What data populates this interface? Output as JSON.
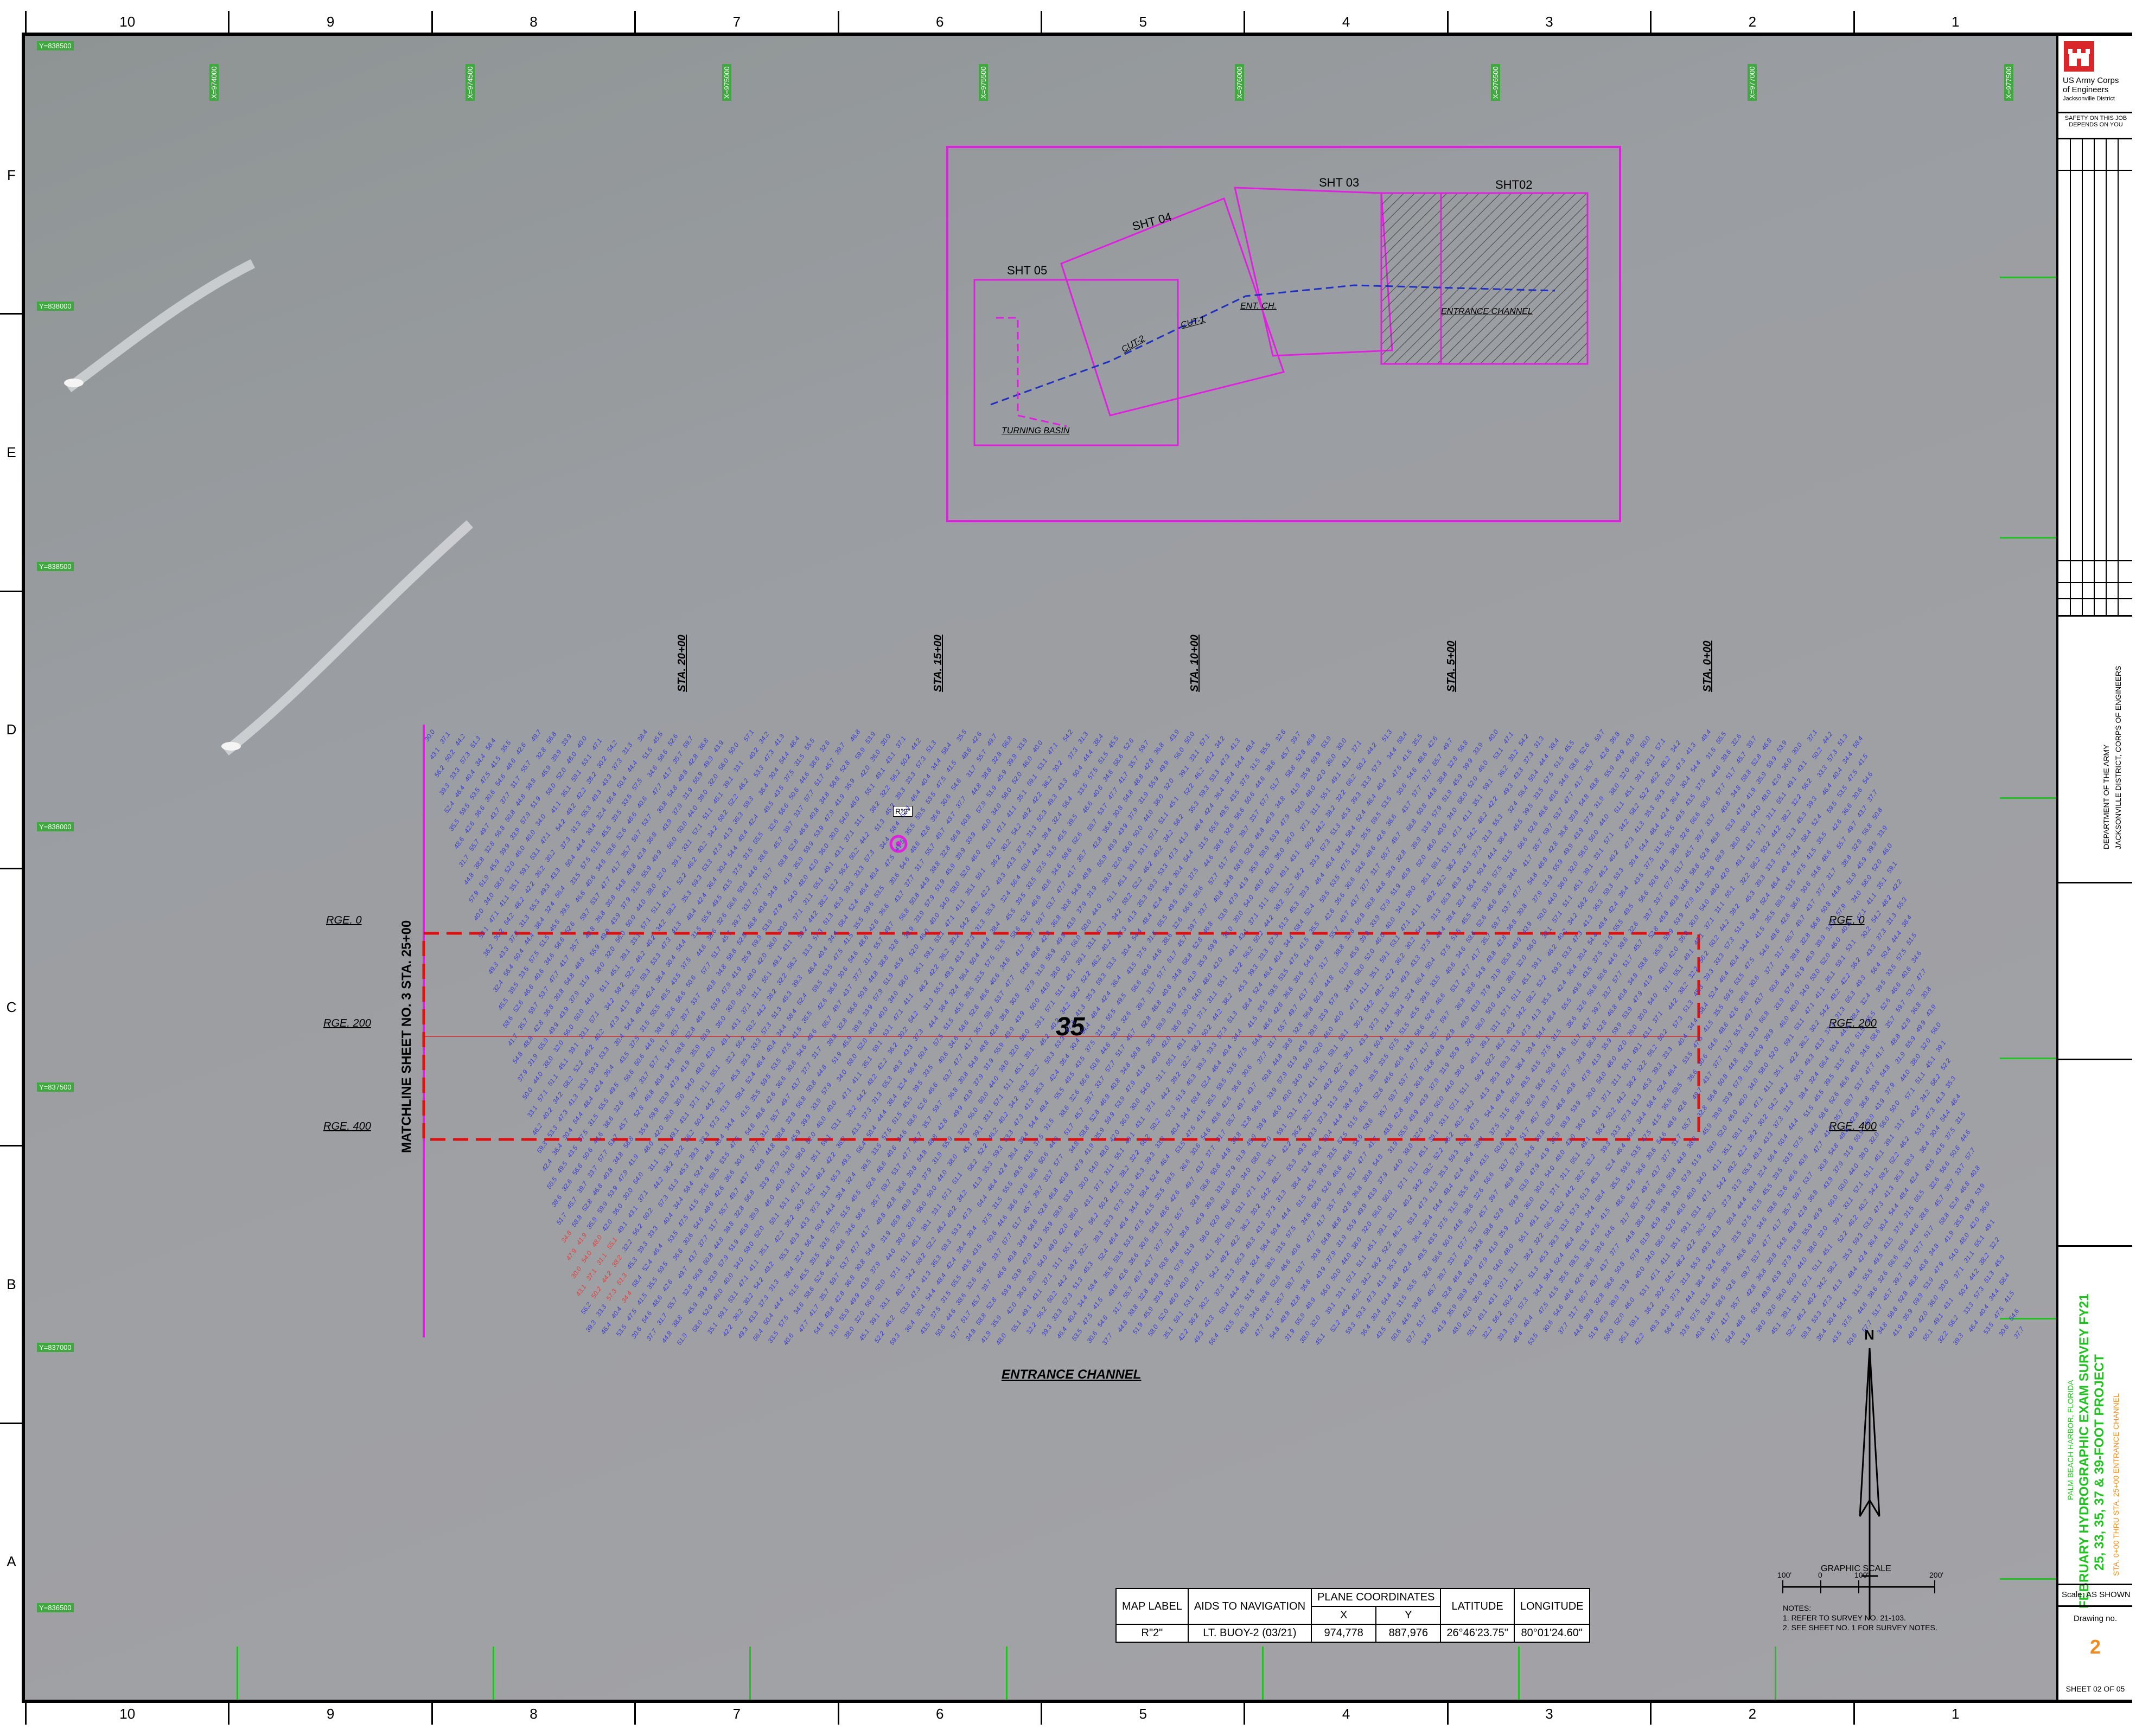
{
  "grid": {
    "columns": [
      "10",
      "9",
      "8",
      "7",
      "6",
      "5",
      "4",
      "3",
      "2",
      "1"
    ],
    "rows": [
      "F",
      "E",
      "D",
      "C",
      "B",
      "A"
    ]
  },
  "map_coords": {
    "left_tags": [
      "Y=838500",
      "Y=838000",
      "Y=838500",
      "Y=838000",
      "Y=837500",
      "Y=837000",
      "Y=836500"
    ],
    "top_tags": [
      "X=974000",
      "X=974500",
      "X=975000",
      "X=975500",
      "X=976000",
      "X=976500",
      "X=977000",
      "X=977500"
    ]
  },
  "key_map": {
    "sheet_labels": [
      "SHT 05",
      "SHT 04",
      "SHT 03",
      "SHT02"
    ],
    "area_labels": [
      "CUT-2",
      "CUT-1",
      "ENT. CH.",
      "ENTRANCE CHANNEL",
      "TURNING BASIN"
    ]
  },
  "stations": [
    "STA. 20+00",
    "STA. 15+00",
    "STA. 10+00",
    "STA. 5+00",
    "STA. 0+00"
  ],
  "ranges": {
    "left": [
      "RGE. 0",
      "RGE. 200",
      "RGE. 400"
    ],
    "right": [
      "RGE. 0",
      "RGE. 200",
      "RGE. 400"
    ]
  },
  "matchline": "MATCHLINE SHEET NO. 3 STA. 25+00",
  "depth_label": "35",
  "channel_label": "ENTRANCE CHANNEL",
  "marker_label": "R\"2\"",
  "nav_table": {
    "headers": {
      "map_label": "MAP LABEL",
      "aids": "AIDS TO NAVIGATION",
      "plane": "PLANE COORDINATES",
      "x": "X",
      "y": "Y",
      "lat": "LATITUDE",
      "lon": "LONGITUDE"
    },
    "row": {
      "label": "R\"2\"",
      "aid": "LT. BUOY-2 (03/21)",
      "x": "974,778",
      "y": "887,976",
      "lat": "26°46'23.75\"",
      "lon": "80°01'24.60\""
    }
  },
  "scale": {
    "title": "GRAPHIC SCALE",
    "ticks": [
      "100'",
      "0",
      "100'",
      "200'"
    ]
  },
  "notes": {
    "title": "NOTES:",
    "lines": [
      "1. REFER TO SURVEY NO. 21-103.",
      "2. SEE SHEET NO. 1 FOR SURVEY NOTES."
    ]
  },
  "north": "N",
  "title_block": {
    "agency_line1": "US Army Corps",
    "agency_line2": "of Engineers",
    "district": "Jacksonville District",
    "safety": "SAFETY ON THIS JOB DEPENDS ON YOU",
    "dept1": "DEPARTMENT OF THE ARMY",
    "dept2": "JACKSONVILLE DISTRICT, CORPS OF ENGINEERS",
    "location": "PALM BEACH HARBOR, FLORIDA",
    "title1": "FEBRUARY HYDROGRAPHIC EXAM SURVEY FY21",
    "title2": "25, 33, 35, 37 & 39-FOOT PROJECT",
    "subtitle": "STA. 0+00 THRU STA. 25+00 ENTRANCE CHANNEL",
    "scale": "Scale: AS SHOWN",
    "drawing_no_label": "Drawing no.",
    "drawing_no": "2",
    "sheet": "SHEET 02 OF 05"
  },
  "colors": {
    "magenta": "#e020e0",
    "red_dash": "#e01010",
    "sounding_blue": "#3b3bd4",
    "grid_green": "#22c022",
    "title_green": "#22c022",
    "title_orange": "#f08c20"
  }
}
